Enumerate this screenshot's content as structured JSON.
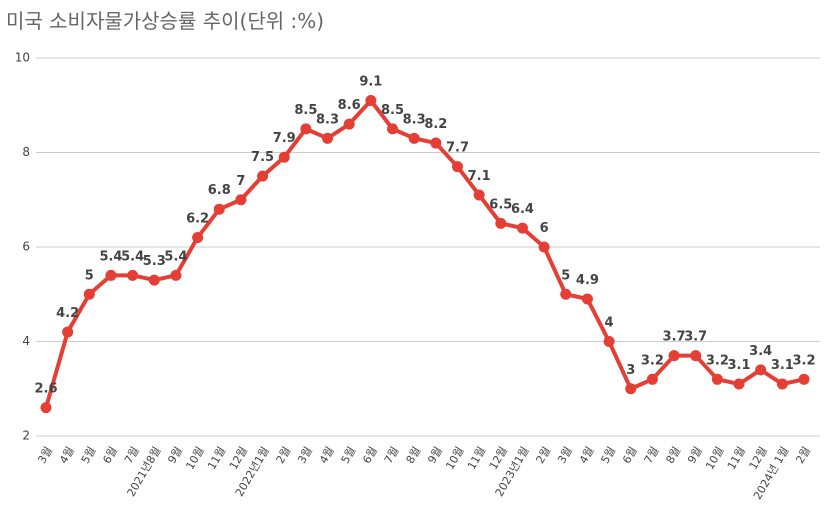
{
  "chart_data": {
    "type": "line",
    "title": "미국 소비자물가상승률 추이(단위 :%)",
    "categories": [
      "3월",
      "4월",
      "5월",
      "6월",
      "7월",
      "2021년8월",
      "9월",
      "10월",
      "11월",
      "12월",
      "2022년1월",
      "2월",
      "3월",
      "4월",
      "5월",
      "6월",
      "7월",
      "8월",
      "9월",
      "10월",
      "11월",
      "12월",
      "2023년1월",
      "2월",
      "3월",
      "4월",
      "5월",
      "6월",
      "7월",
      "8월",
      "9월",
      "10월",
      "11월",
      "12월",
      "2024년 1월",
      "2월"
    ],
    "values": [
      2.6,
      4.2,
      5,
      5.4,
      5.4,
      5.3,
      5.4,
      6.2,
      6.8,
      7,
      7.5,
      7.9,
      8.5,
      8.3,
      8.6,
      9.1,
      8.5,
      8.3,
      8.2,
      7.7,
      7.1,
      6.5,
      6.4,
      6,
      5,
      4.9,
      4,
      3,
      3.2,
      3.7,
      3.7,
      3.2,
      3.1,
      3.4,
      3.1,
      3.2
    ],
    "color": "#e53e35",
    "ylim": [
      2,
      10
    ],
    "yticks": [
      2,
      4,
      6,
      8,
      10
    ],
    "grid": true
  }
}
